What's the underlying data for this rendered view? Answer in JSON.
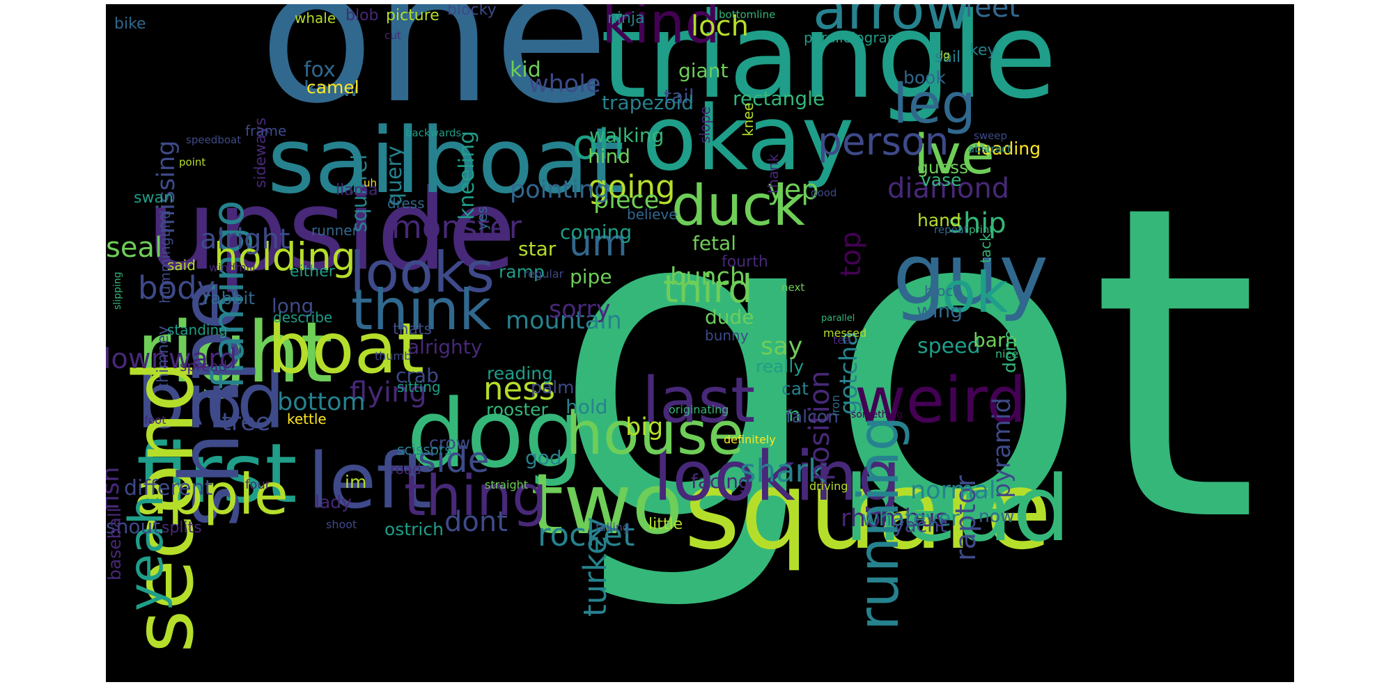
{
  "background": "#000000",
  "palette": [
    "#440154",
    "#482878",
    "#3e4a89",
    "#31688e",
    "#26828e",
    "#1f9e89",
    "#35b779",
    "#6ece58",
    "#b5de2b",
    "#fde725"
  ],
  "words": [
    {
      "text": "got",
      "color": "#35b779"
    },
    {
      "text": "one",
      "color": "#31688e"
    },
    {
      "text": "triangle",
      "color": "#1f9e89"
    },
    {
      "text": "upside",
      "color": "#482878"
    },
    {
      "text": "square",
      "color": "#b5de2b"
    },
    {
      "text": "sailboat",
      "color": "#26828e"
    },
    {
      "text": "okay",
      "color": "#1f9e89"
    },
    {
      "text": "right",
      "color": "#6ece58"
    },
    {
      "text": "dog",
      "color": "#35b779"
    },
    {
      "text": "first",
      "color": "#1f9e89"
    },
    {
      "text": "bird",
      "color": "#3e4a89"
    },
    {
      "text": "head",
      "color": "#35b779"
    },
    {
      "text": "second",
      "color": "#b5de2b"
    },
    {
      "text": "shape",
      "color": "#3e4a89"
    },
    {
      "text": "guy",
      "color": "#31688e"
    },
    {
      "text": "two",
      "color": "#6ece58"
    },
    {
      "text": "left",
      "color": "#3e4a89"
    },
    {
      "text": "boat",
      "color": "#b5de2b"
    },
    {
      "text": "looking",
      "color": "#482878"
    },
    {
      "text": "house",
      "color": "#6ece58"
    },
    {
      "text": "last",
      "color": "#482878"
    },
    {
      "text": "weird",
      "color": "#440154"
    },
    {
      "text": "apple",
      "color": "#b5de2b"
    },
    {
      "text": "duck",
      "color": "#6ece58"
    },
    {
      "text": "arrow",
      "color": "#26828e"
    },
    {
      "text": "kind",
      "color": "#440154"
    },
    {
      "text": "thing",
      "color": "#482878"
    },
    {
      "text": "looks",
      "color": "#3e4a89"
    },
    {
      "text": "think",
      "color": "#31688e"
    },
    {
      "text": "ive",
      "color": "#6ece58"
    },
    {
      "text": "leg",
      "color": "#31688e"
    },
    {
      "text": "ok",
      "color": "#1f9e89"
    },
    {
      "text": "running",
      "color": "#26828e"
    },
    {
      "text": "yeah",
      "color": "#1f9e89"
    },
    {
      "text": "flamingo",
      "color": "#26828e"
    },
    {
      "text": "holding",
      "color": "#b5de2b"
    },
    {
      "text": "oh",
      "color": "#1f9e89"
    },
    {
      "text": "person",
      "color": "#3e4a89"
    },
    {
      "text": "third",
      "color": "#6ece58"
    },
    {
      "text": "rocket",
      "color": "#26828e"
    },
    {
      "text": "um",
      "color": "#31688e"
    },
    {
      "text": "ness",
      "color": "#b5de2b"
    },
    {
      "text": "turkey",
      "color": "#26828e"
    },
    {
      "text": "going",
      "color": "#b5de2b"
    },
    {
      "text": "monster",
      "color": "#482878"
    },
    {
      "text": "alright",
      "color": "#3e4a89"
    },
    {
      "text": "flying",
      "color": "#482878"
    },
    {
      "text": "mountain",
      "color": "#26828e"
    },
    {
      "text": "sorry",
      "color": "#482878"
    },
    {
      "text": "side",
      "color": "#3e4a89"
    },
    {
      "text": "diamond",
      "color": "#482878"
    },
    {
      "text": "top",
      "color": "#440154"
    },
    {
      "text": "body",
      "color": "#3e4a89"
    },
    {
      "text": "bottom",
      "color": "#26828e"
    },
    {
      "text": "downward",
      "color": "#482878"
    },
    {
      "text": "tree",
      "color": "#3e4a89"
    },
    {
      "text": "fish",
      "color": "#482878"
    },
    {
      "text": "seal",
      "color": "#6ece58"
    },
    {
      "text": "bunch",
      "color": "#6ece58"
    },
    {
      "text": "big",
      "color": "#b5de2b"
    },
    {
      "text": "shark",
      "color": "#26828e"
    },
    {
      "text": "dont",
      "color": "#3e4a89"
    },
    {
      "text": "loch",
      "color": "#b5de2b"
    },
    {
      "text": "feet",
      "color": "#31688e"
    },
    {
      "text": "yep",
      "color": "#6ece58"
    },
    {
      "text": "ship",
      "color": "#35b779"
    },
    {
      "text": "raptor",
      "color": "#3e4a89"
    },
    {
      "text": "position",
      "color": "#482878"
    },
    {
      "text": "gotcha",
      "color": "#26828e"
    },
    {
      "text": "say",
      "color": "#6ece58"
    },
    {
      "text": "pyramid",
      "color": "#3e4a89"
    },
    {
      "text": "piece",
      "color": "#6ece58"
    },
    {
      "text": "pointing",
      "color": "#31688e"
    },
    {
      "text": "whole",
      "color": "#3e4a89"
    },
    {
      "text": "missing",
      "color": "#3e4a89"
    },
    {
      "text": "rhombus",
      "color": "#482878"
    },
    {
      "text": "normal",
      "color": "#26828e"
    },
    {
      "text": "whatever",
      "color": "#26828e"
    },
    {
      "text": "different",
      "color": "#3e4a89"
    },
    {
      "text": "fox",
      "color": "#31688e"
    },
    {
      "text": "know",
      "color": "#31688e"
    },
    {
      "text": "camel",
      "color": "#fde725"
    },
    {
      "text": "kid",
      "color": "#6ece58"
    },
    {
      "text": "query",
      "color": "#26828e"
    },
    {
      "text": "squirrel",
      "color": "#26828e"
    },
    {
      "text": "kneeling",
      "color": "#1f9e89"
    },
    {
      "text": "giant",
      "color": "#6ece58"
    },
    {
      "text": "tail",
      "color": "#3e4a89"
    },
    {
      "text": "rectangle",
      "color": "#35b779"
    },
    {
      "text": "trapezoid",
      "color": "#26828e"
    },
    {
      "text": "walking",
      "color": "#35b779"
    },
    {
      "text": "hind",
      "color": "#6ece58"
    },
    {
      "text": "loading",
      "color": "#fde725"
    },
    {
      "text": "book",
      "color": "#31688e"
    },
    {
      "text": "guess",
      "color": "#6ece58"
    },
    {
      "text": "vase",
      "color": "#35b779"
    },
    {
      "text": "hand",
      "color": "#b5de2b"
    },
    {
      "text": "coming",
      "color": "#1f9e89"
    },
    {
      "text": "star",
      "color": "#b5de2b"
    },
    {
      "text": "fetal",
      "color": "#6ece58"
    },
    {
      "text": "fourth",
      "color": "#482878"
    },
    {
      "text": "pipe",
      "color": "#6ece58"
    },
    {
      "text": "ramp",
      "color": "#1f9e89"
    },
    {
      "text": "dude",
      "color": "#6ece58"
    },
    {
      "text": "bunny",
      "color": "#3e4a89"
    },
    {
      "text": "wing",
      "color": "#31688e"
    },
    {
      "text": "block",
      "color": "#31688e"
    },
    {
      "text": "speed",
      "color": "#1f9e89"
    },
    {
      "text": "barn",
      "color": "#6ece58"
    },
    {
      "text": "done",
      "color": "#35b779"
    },
    {
      "text": "really",
      "color": "#1f9e89"
    },
    {
      "text": "cat",
      "color": "#26828e"
    },
    {
      "text": "arm",
      "color": "#35b779"
    },
    {
      "text": "hold",
      "color": "#26828e"
    },
    {
      "text": "falcon",
      "color": "#3e4a89"
    },
    {
      "text": "crab",
      "color": "#3e4a89"
    },
    {
      "text": "sitting",
      "color": "#1f9e89"
    },
    {
      "text": "reading",
      "color": "#1f9e89"
    },
    {
      "text": "rooster",
      "color": "#35b779"
    },
    {
      "text": "palm",
      "color": "#3e4a89"
    },
    {
      "text": "crow",
      "color": "#3e4a89"
    },
    {
      "text": "scissors",
      "color": "#26828e"
    },
    {
      "text": "god",
      "color": "#26828e"
    },
    {
      "text": "facing",
      "color": "#482878"
    },
    {
      "text": "im",
      "color": "#b5de2b"
    },
    {
      "text": "lady",
      "color": "#482878"
    },
    {
      "text": "snout",
      "color": "#3e4a89"
    },
    {
      "text": "splits",
      "color": "#482878"
    },
    {
      "text": "ostrich",
      "color": "#1f9e89"
    },
    {
      "text": "little",
      "color": "#b5de2b"
    },
    {
      "text": "yacht",
      "color": "#3e4a89"
    },
    {
      "text": "now",
      "color": "#31688e"
    },
    {
      "text": "alrighty",
      "color": "#482878"
    },
    {
      "text": "long",
      "color": "#3e4a89"
    },
    {
      "text": "rabbit",
      "color": "#31688e"
    },
    {
      "text": "said",
      "color": "#b5de2b"
    },
    {
      "text": "either",
      "color": "#1f9e89"
    },
    {
      "text": "thats",
      "color": "#3e4a89"
    },
    {
      "text": "hummingbird",
      "color": "#3e4a89"
    },
    {
      "text": "swan",
      "color": "#1f9e89"
    },
    {
      "text": "chimney",
      "color": "#3e4a89"
    },
    {
      "text": "sideways",
      "color": "#482878"
    },
    {
      "text": "frame",
      "color": "#3e4a89"
    },
    {
      "text": "runner",
      "color": "#31688e"
    },
    {
      "text": "describe",
      "color": "#1f9e89"
    },
    {
      "text": "llama",
      "color": "#482878"
    },
    {
      "text": "dress",
      "color": "#31688e"
    },
    {
      "text": "bike",
      "color": "#31688e"
    },
    {
      "text": "whale",
      "color": "#b5de2b"
    },
    {
      "text": "blob",
      "color": "#482878"
    },
    {
      "text": "picture",
      "color": "#b5de2b"
    },
    {
      "text": "blocky",
      "color": "#3e4a89"
    },
    {
      "text": "ninja",
      "color": "#26828e"
    },
    {
      "text": "bottomline",
      "color": "#35b779"
    },
    {
      "text": "parallelogram",
      "color": "#1f9e89"
    },
    {
      "text": "sail",
      "color": "#26828e"
    },
    {
      "text": "key",
      "color": "#26828e"
    },
    {
      "text": "lg",
      "color": "#b5de2b"
    },
    {
      "text": "knee",
      "color": "#b5de2b"
    },
    {
      "text": "thank",
      "color": "#482878"
    },
    {
      "text": "slope",
      "color": "#482878"
    },
    {
      "text": "cut",
      "color": "#482878"
    },
    {
      "text": "sweep",
      "color": "#3e4a89"
    },
    {
      "text": "abstract",
      "color": "#26828e"
    },
    {
      "text": "tack",
      "color": "#35b779"
    },
    {
      "text": "speedboat",
      "color": "#3e4a89"
    },
    {
      "text": "point",
      "color": "#b5de2b"
    },
    {
      "text": "backwards",
      "color": "#1f9e89"
    },
    {
      "text": "yes",
      "color": "#31688e"
    },
    {
      "text": "uh",
      "color": "#fde725"
    },
    {
      "text": "good",
      "color": "#3e4a89"
    },
    {
      "text": "believe",
      "color": "#31688e"
    },
    {
      "text": "repeat",
      "color": "#31688e"
    },
    {
      "text": "print",
      "color": "#35b779"
    },
    {
      "text": "slipping",
      "color": "#35b779"
    },
    {
      "text": "windmill",
      "color": "#482878"
    },
    {
      "text": "next",
      "color": "#6ece58"
    },
    {
      "text": "parallel",
      "color": "#35b779"
    },
    {
      "text": "messed",
      "color": "#b5de2b"
    },
    {
      "text": "tea",
      "color": "#482878"
    },
    {
      "text": "nice",
      "color": "#35b779"
    },
    {
      "text": "standing",
      "color": "#1f9e89"
    },
    {
      "text": "thumb",
      "color": "#3e4a89"
    },
    {
      "text": "spread",
      "color": "#482878"
    },
    {
      "text": "originating",
      "color": "#35b779"
    },
    {
      "text": "something",
      "color": "#440154"
    },
    {
      "text": "iron",
      "color": "#31688e"
    },
    {
      "text": "kettle",
      "color": "#fde725"
    },
    {
      "text": "foot",
      "color": "#482878"
    },
    {
      "text": "regular",
      "color": "#3e4a89"
    },
    {
      "text": "definitely",
      "color": "#fde725"
    },
    {
      "text": "road",
      "color": "#482878"
    },
    {
      "text": "straight",
      "color": "#6ece58"
    },
    {
      "text": "driving",
      "color": "#b5de2b"
    },
    {
      "text": "four",
      "color": "#482878"
    },
    {
      "text": "baseball",
      "color": "#482878"
    },
    {
      "text": "shoot",
      "color": "#3e4a89"
    },
    {
      "text": "falling",
      "color": "#3e4a89"
    },
    {
      "text": "every",
      "color": "#482878"
    },
    {
      "text": "someone",
      "color": "#440154"
    }
  ]
}
